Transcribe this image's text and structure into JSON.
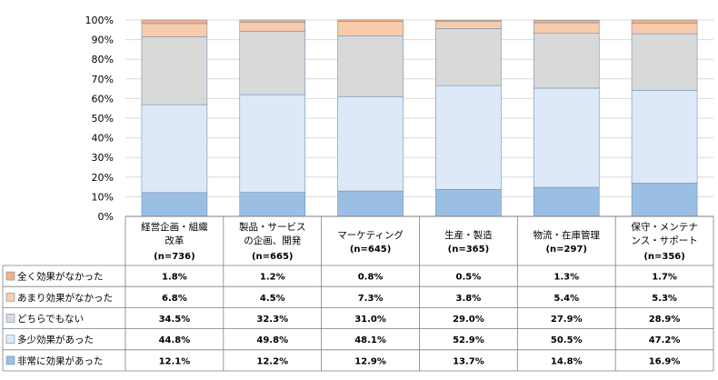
{
  "chart_data": {
    "type": "bar",
    "stacked": true,
    "percent": true,
    "ylim": [
      0,
      100
    ],
    "y_ticks": [
      "0%",
      "10%",
      "20%",
      "30%",
      "40%",
      "50%",
      "60%",
      "70%",
      "80%",
      "90%",
      "100%"
    ],
    "grid": true,
    "legend_placement": "left data table",
    "categories": [
      {
        "lines": [
          "経営企画・組織",
          "改革"
        ],
        "n": "(n=736)"
      },
      {
        "lines": [
          "製品・サービス",
          "の企画、開発"
        ],
        "n": "(n=665)"
      },
      {
        "lines": [
          "マーケティング"
        ],
        "n": "(n=645)"
      },
      {
        "lines": [
          "生産・製造"
        ],
        "n": "(n=365)"
      },
      {
        "lines": [
          "物流・在庫管理"
        ],
        "n": "(n=297)"
      },
      {
        "lines": [
          "保守・メンテナ",
          "ンス・サポート"
        ],
        "n": "(n=356)"
      }
    ],
    "series": [
      {
        "name": "非常に効果があった",
        "color": "#9bbfe3",
        "values": [
          12.1,
          12.2,
          12.9,
          13.7,
          14.8,
          16.9
        ],
        "labels": [
          "12.1%",
          "12.2%",
          "12.9%",
          "13.7%",
          "14.8%",
          "16.9%"
        ]
      },
      {
        "name": "多少効果があった",
        "color": "#dde9f7",
        "values": [
          44.8,
          49.8,
          48.1,
          52.9,
          50.5,
          47.2
        ],
        "labels": [
          "44.8%",
          "49.8%",
          "48.1%",
          "52.9%",
          "50.5%",
          "47.2%"
        ]
      },
      {
        "name": "どちらでもない",
        "color": "#d9d9d9",
        "values": [
          34.5,
          32.3,
          31.0,
          29.0,
          27.9,
          28.9
        ],
        "labels": [
          "34.5%",
          "32.3%",
          "31.0%",
          "29.0%",
          "27.9%",
          "28.9%"
        ]
      },
      {
        "name": "あまり効果がなかった",
        "color": "#f8cbad",
        "values": [
          6.8,
          4.5,
          7.3,
          3.8,
          5.4,
          5.3
        ],
        "labels": [
          "6.8%",
          "4.5%",
          "7.3%",
          "3.8%",
          "5.4%",
          "5.3%"
        ]
      },
      {
        "name": "全く効果がなかった",
        "color": "#f4b183",
        "values": [
          1.8,
          1.2,
          0.8,
          0.5,
          1.3,
          1.7
        ],
        "labels": [
          "1.8%",
          "1.2%",
          "0.8%",
          "0.5%",
          "1.3%",
          "1.7%"
        ]
      }
    ],
    "colors": {
      "border": "#7f7f7f",
      "grid": "#d9d9d9",
      "bar_stroke": "#6f8fb3"
    }
  }
}
